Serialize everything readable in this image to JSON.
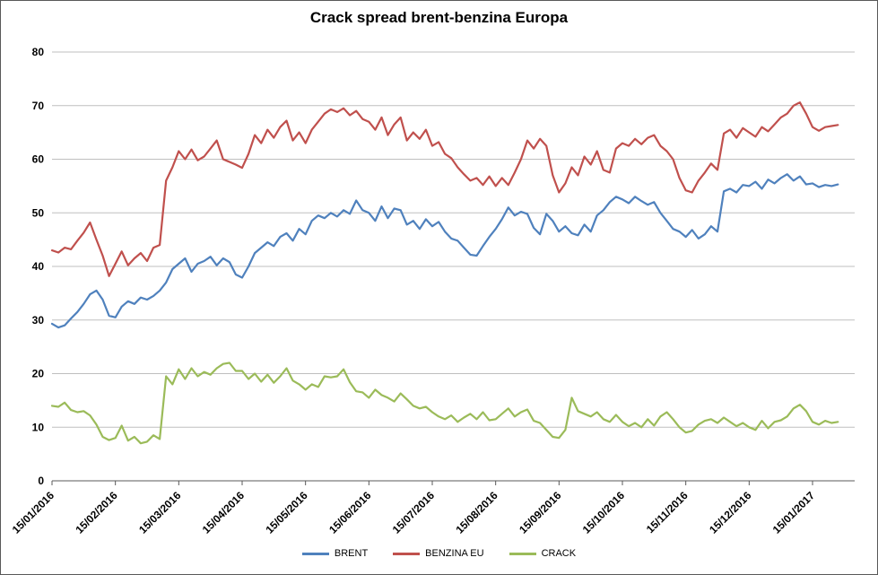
{
  "chart_data": {
    "type": "line",
    "title": "Crack spread brent-benzina Europa",
    "xlabel": "",
    "ylabel": "",
    "ylim": [
      0,
      80
    ],
    "ytick_step": 10,
    "grid": true,
    "legend_position": "bottom",
    "grid_color": "#BFBFBF",
    "axis_color": "#595959",
    "points_per_tick": 10,
    "x_tick_labels": [
      "15/01/2016",
      "15/02/2016",
      "15/03/2016",
      "15/04/2016",
      "15/05/2016",
      "15/06/2016",
      "15/07/2016",
      "15/08/2016",
      "15/09/2016",
      "15/10/2016",
      "15/11/2016",
      "15/12/2016",
      "15/01/2017"
    ],
    "series": [
      {
        "name": "BRENT",
        "color": "#4F81BD",
        "values": [
          29.3,
          28.6,
          29.0,
          30.3,
          31.5,
          33.0,
          34.8,
          35.5,
          33.8,
          30.8,
          30.5,
          32.5,
          33.5,
          33.0,
          34.2,
          33.8,
          34.5,
          35.5,
          37.0,
          39.5,
          40.5,
          41.5,
          39.0,
          40.5,
          41.0,
          41.8,
          40.2,
          41.5,
          40.8,
          38.5,
          37.9,
          40.0,
          42.5,
          43.5,
          44.5,
          43.8,
          45.5,
          46.2,
          44.8,
          47.0,
          46.0,
          48.5,
          49.5,
          49.0,
          50.0,
          49.3,
          50.5,
          49.8,
          52.3,
          50.5,
          50.0,
          48.5,
          51.2,
          49.0,
          50.8,
          50.5,
          47.8,
          48.5,
          47.0,
          48.8,
          47.5,
          48.3,
          46.5,
          45.2,
          44.8,
          43.5,
          42.2,
          42.0,
          43.8,
          45.5,
          47.0,
          48.8,
          51.0,
          49.5,
          50.2,
          49.8,
          47.2,
          46.0,
          49.8,
          48.5,
          46.5,
          47.5,
          46.2,
          45.8,
          47.8,
          46.5,
          49.5,
          50.5,
          52.0,
          53.0,
          52.5,
          51.8,
          53.0,
          52.2,
          51.5,
          52.0,
          50.0,
          48.5,
          47.0,
          46.5,
          45.5,
          46.8,
          45.2,
          46.0,
          47.5,
          46.5,
          54.0,
          54.5,
          53.8,
          55.2,
          55.0,
          55.8,
          54.5,
          56.2,
          55.5,
          56.5,
          57.2,
          56.0,
          56.8,
          55.3,
          55.5,
          54.8,
          55.2,
          55.0,
          55.3
        ]
      },
      {
        "name": "BENZINA EU",
        "color": "#C0504D",
        "values": [
          43.0,
          42.6,
          43.5,
          43.2,
          44.8,
          46.3,
          48.2,
          45.0,
          42.0,
          38.2,
          40.5,
          42.8,
          40.2,
          41.5,
          42.5,
          41.0,
          43.5,
          44.0,
          56.0,
          58.5,
          61.5,
          60.0,
          61.8,
          59.8,
          60.5,
          62.0,
          63.5,
          60.0,
          59.5,
          59.0,
          58.4,
          61.0,
          64.5,
          63.0,
          65.5,
          64.0,
          66.0,
          67.2,
          63.5,
          65.0,
          63.0,
          65.5,
          67.0,
          68.5,
          69.3,
          68.8,
          69.5,
          68.2,
          69.0,
          67.5,
          67.0,
          65.5,
          67.8,
          64.5,
          66.5,
          67.8,
          63.5,
          65.0,
          63.8,
          65.5,
          62.5,
          63.2,
          61.0,
          60.2,
          58.5,
          57.2,
          56.0,
          56.5,
          55.2,
          56.8,
          55.0,
          56.5,
          55.2,
          57.5,
          60.0,
          63.5,
          62.0,
          63.8,
          62.5,
          57.0,
          53.8,
          55.5,
          58.5,
          57.0,
          60.5,
          59.0,
          61.5,
          58.0,
          57.5,
          62.0,
          63.0,
          62.5,
          63.8,
          62.8,
          64.0,
          64.5,
          62.5,
          61.5,
          60.0,
          56.5,
          54.2,
          53.8,
          56.0,
          57.5,
          59.2,
          58.0,
          64.8,
          65.5,
          64.0,
          65.8,
          65.0,
          64.2,
          66.0,
          65.2,
          66.5,
          67.8,
          68.5,
          70.0,
          70.6,
          68.5,
          66.0,
          65.3,
          66.0,
          66.2,
          66.4
        ]
      },
      {
        "name": "CRACK",
        "color": "#9BBB59",
        "values": [
          14.0,
          13.8,
          14.6,
          13.2,
          12.8,
          13.0,
          12.2,
          10.5,
          8.2,
          7.6,
          8.0,
          10.3,
          7.5,
          8.2,
          7.0,
          7.3,
          8.5,
          7.8,
          19.5,
          18.0,
          20.8,
          19.0,
          21.0,
          19.5,
          20.3,
          19.8,
          21.0,
          21.8,
          22.0,
          20.5,
          20.5,
          19.0,
          20.0,
          18.5,
          19.8,
          18.3,
          19.5,
          21.0,
          18.7,
          18.0,
          17.0,
          18.0,
          17.5,
          19.5,
          19.3,
          19.5,
          20.8,
          18.4,
          16.7,
          16.5,
          15.5,
          17.0,
          16.0,
          15.5,
          14.8,
          16.3,
          15.2,
          14.0,
          13.5,
          13.8,
          12.8,
          12.0,
          11.5,
          12.2,
          11.0,
          11.8,
          12.5,
          11.5,
          12.8,
          11.3,
          11.5,
          12.5,
          13.5,
          12.0,
          12.8,
          13.3,
          11.2,
          10.8,
          9.5,
          8.2,
          8.0,
          9.5,
          15.5,
          13.0,
          12.5,
          12.0,
          12.8,
          11.5,
          11.0,
          12.3,
          11.0,
          10.2,
          10.8,
          10.0,
          11.5,
          10.3,
          12.0,
          12.8,
          11.5,
          10.0,
          9.0,
          9.3,
          10.5,
          11.2,
          11.5,
          10.8,
          11.8,
          11.0,
          10.2,
          10.8,
          10.0,
          9.5,
          11.2,
          9.8,
          11.0,
          11.3,
          12.0,
          13.5,
          14.2,
          13.0,
          11.0,
          10.5,
          11.2,
          10.8,
          11.0
        ]
      }
    ]
  }
}
